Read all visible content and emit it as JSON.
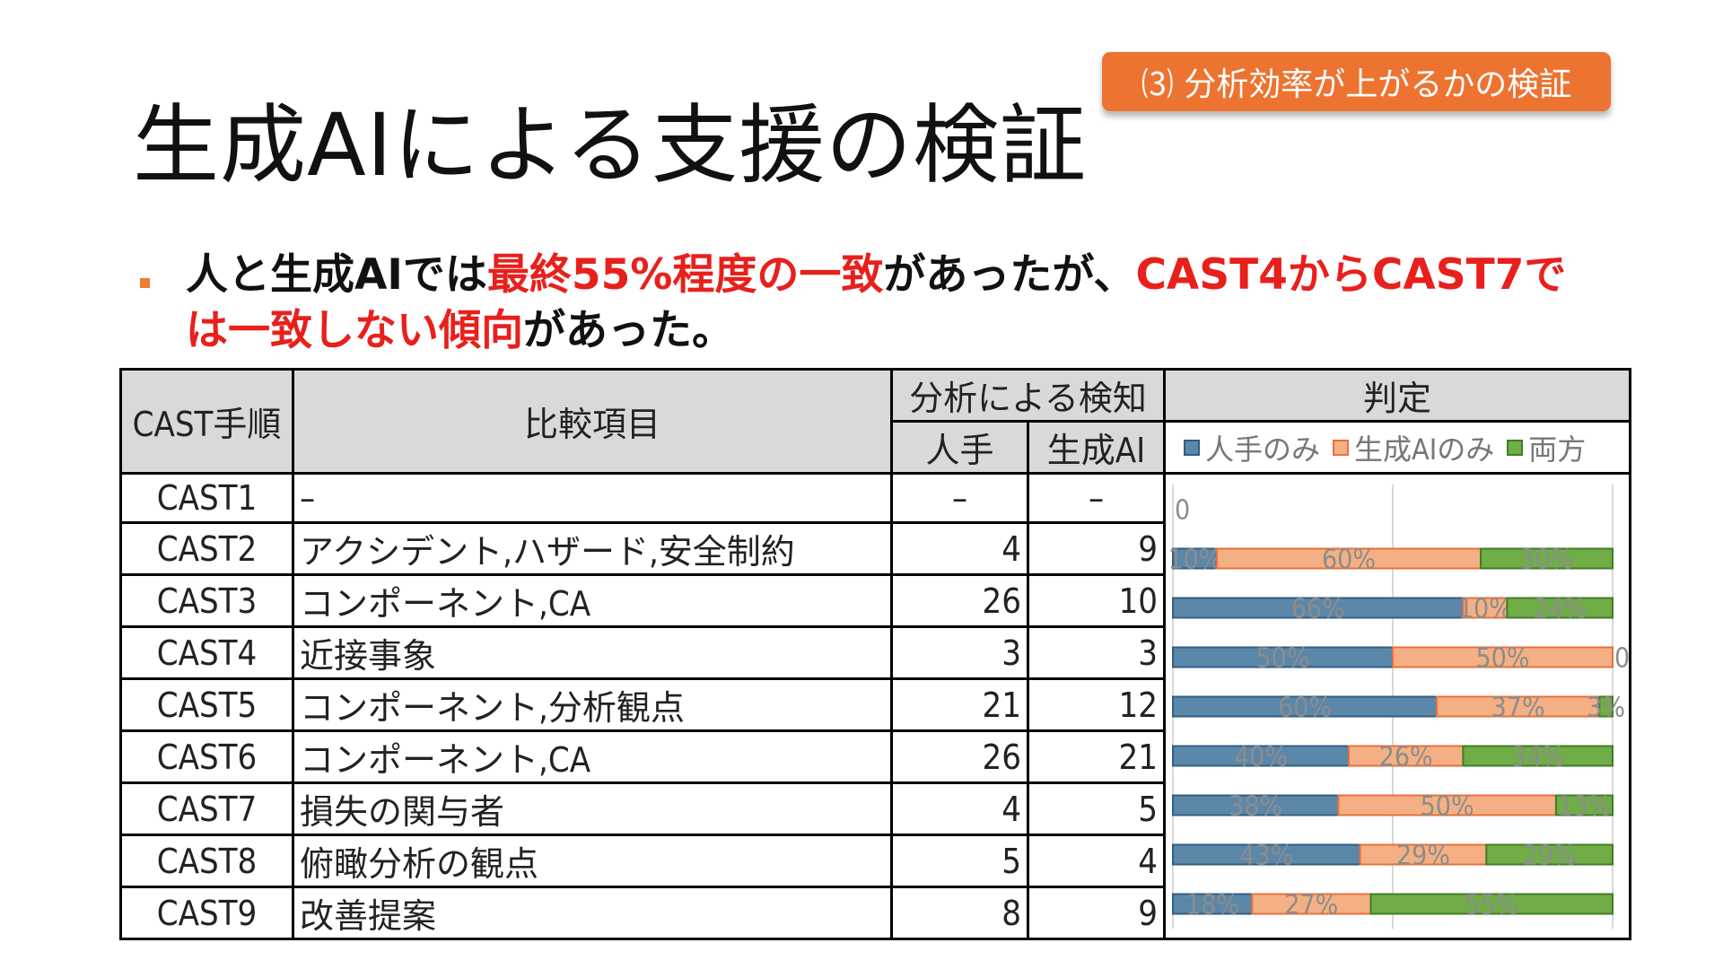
{
  "badge": "⑶ 分析効率が上がるかの検証",
  "title": "生成AIによる支援の検証",
  "bullet": {
    "p1": "人と生成AIでは",
    "r1": "最終55%程度の一致",
    "p2": "があったが、",
    "r2": "CAST4からCAST7では一致しない傾向",
    "p3": "があった。"
  },
  "table": {
    "headers": {
      "step": "CAST手順",
      "item": "比較項目",
      "detect": "分析による検知",
      "human": "人手",
      "ai": "生成AI",
      "judge": "判定"
    },
    "rows": [
      {
        "step": "CAST1",
        "item": "–",
        "human": "–",
        "ai": "–"
      },
      {
        "step": "CAST2",
        "item": "アクシデント,ハザード,安全制約",
        "human": "4",
        "ai": "9"
      },
      {
        "step": "CAST3",
        "item": "コンポーネント,CA",
        "human": "26",
        "ai": "10"
      },
      {
        "step": "CAST4",
        "item": "近接事象",
        "human": "3",
        "ai": "3"
      },
      {
        "step": "CAST5",
        "item": "コンポーネント,分析観点",
        "human": "21",
        "ai": "12"
      },
      {
        "step": "CAST6",
        "item": "コンポーネント,CA",
        "human": "26",
        "ai": "21"
      },
      {
        "step": "CAST7",
        "item": "損失の関与者",
        "human": "4",
        "ai": "5"
      },
      {
        "step": "CAST8",
        "item": "俯瞰分析の観点",
        "human": "5",
        "ai": "4"
      },
      {
        "step": "CAST9",
        "item": "改善提案",
        "human": "8",
        "ai": "9"
      }
    ]
  },
  "chart_data": {
    "type": "bar",
    "stacked": "percent",
    "orientation": "horizontal",
    "categories": [
      "CAST1",
      "CAST2",
      "CAST3",
      "CAST4",
      "CAST5",
      "CAST6",
      "CAST7",
      "CAST8",
      "CAST9"
    ],
    "series": [
      {
        "name": "人手のみ",
        "values": [
          0,
          10,
          66,
          50,
          60,
          40,
          38,
          43,
          18
        ],
        "labels": [
          "0",
          "10%",
          "66%",
          "50%",
          "60%",
          "40%",
          "38%",
          "43%",
          "18%"
        ]
      },
      {
        "name": "生成AIのみ",
        "values": [
          0,
          60,
          10,
          50,
          37,
          26,
          50,
          29,
          27
        ],
        "labels": [
          "",
          "60%",
          "10%",
          "50%",
          "37%",
          "26%",
          "50%",
          "29%",
          "27%"
        ]
      },
      {
        "name": "両方",
        "values": [
          0,
          30,
          24,
          0,
          3,
          34,
          13,
          29,
          55
        ],
        "labels": [
          "",
          "30%",
          "24%",
          "0",
          "3%",
          "34%",
          "13%",
          "29%",
          "55%"
        ]
      }
    ],
    "colors": {
      "human_only": "#5b87a9",
      "ai_only": "#f4b084",
      "both": "#70ad47"
    },
    "legend": "top",
    "grid": true
  }
}
